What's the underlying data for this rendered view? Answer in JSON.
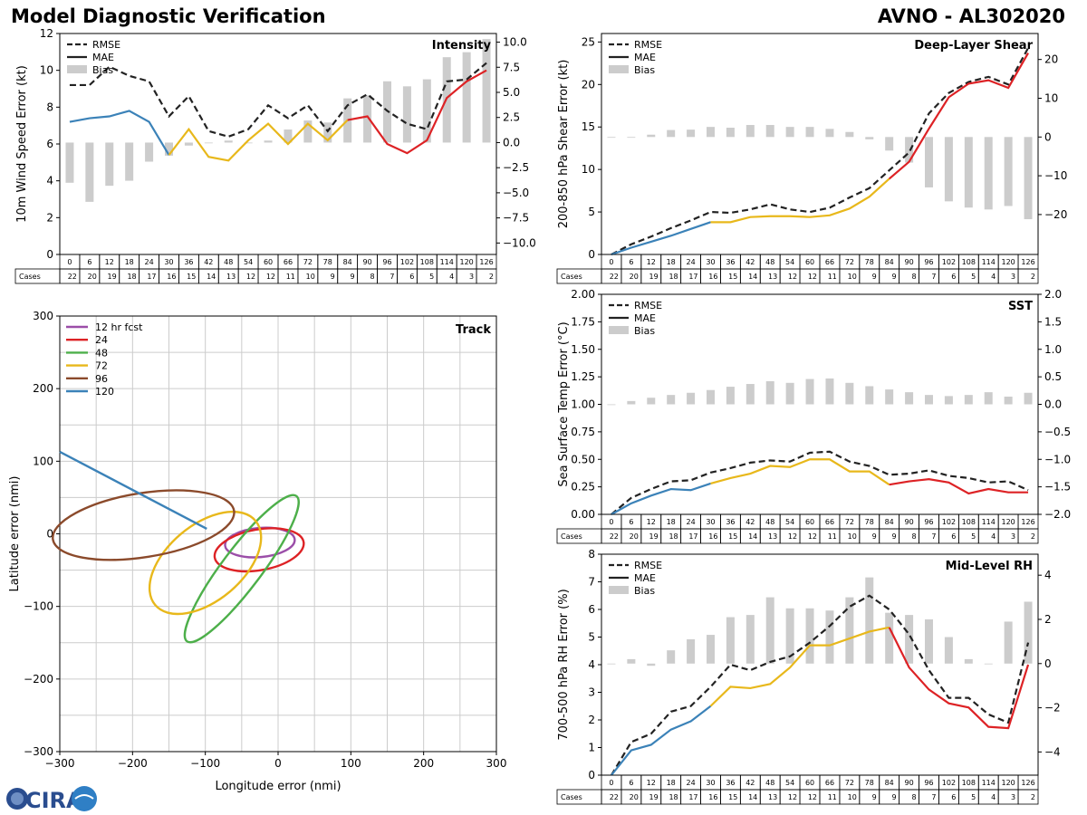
{
  "header": {
    "left_title": "Model Diagnostic Verification",
    "right_title": "AVNO - AL302020"
  },
  "colors": {
    "rmse": "#222222",
    "mae_early": "#3b82b8",
    "mae_mid": "#e8b81b",
    "mae_late": "#dd2225",
    "bias": "#cccccc",
    "grid": "#cccccc",
    "t12": "#9b4ea8",
    "t24": "#dd2225",
    "t48": "#4daf4a",
    "t72": "#e8b81b",
    "t96": "#8b4a2b",
    "t120": "#3b82b8"
  },
  "lead_hours": [
    0,
    6,
    12,
    18,
    24,
    30,
    36,
    42,
    48,
    54,
    60,
    66,
    72,
    78,
    84,
    90,
    96,
    102,
    108,
    114,
    120,
    126
  ],
  "cases": [
    22,
    20,
    19,
    18,
    17,
    16,
    15,
    14,
    13,
    12,
    12,
    11,
    10,
    9,
    9,
    8,
    7,
    6,
    5,
    4,
    3,
    2
  ],
  "cases_label": "Cases",
  "legend_labels": {
    "rmse": "RMSE",
    "mae": "MAE",
    "bias": "Bias"
  },
  "logo_text": "CIRA",
  "chart_data": [
    {
      "id": "intensity",
      "type": "line",
      "title": "Intensity",
      "ylabel": "10m Wind Speed Error (kt)",
      "ylim": [
        0,
        12
      ],
      "y2lim": [
        -11.14,
        10.86
      ],
      "yticks": [
        0,
        2,
        4,
        6,
        8,
        10,
        12
      ],
      "y2ticks": [
        -10.0,
        -7.5,
        -5.0,
        -2.5,
        0.0,
        2.5,
        5.0,
        7.5,
        10.0
      ],
      "rmse": [
        9.2,
        9.2,
        10.2,
        9.7,
        9.4,
        7.5,
        8.6,
        6.7,
        6.4,
        6.8,
        8.1,
        7.4,
        8.1,
        6.7,
        8.1,
        8.7,
        7.8,
        7.1,
        6.8,
        9.4,
        9.5,
        10.4
      ],
      "mae": [
        7.2,
        7.4,
        7.5,
        7.8,
        7.2,
        5.4,
        6.8,
        5.3,
        5.1,
        6.2,
        7.1,
        6.0,
        7.1,
        6.2,
        7.3,
        7.5,
        6.0,
        5.5,
        6.2,
        8.5,
        9.4,
        10.0
      ],
      "bias": [
        -4.0,
        -5.9,
        -4.3,
        -3.8,
        -1.9,
        -1.3,
        -0.3,
        0.0,
        0.2,
        0.0,
        0.2,
        1.3,
        2.2,
        2.0,
        4.4,
        4.7,
        6.1,
        5.6,
        6.3,
        8.5,
        9.0,
        10.3
      ]
    },
    {
      "id": "shear",
      "type": "line",
      "title": "Deep-Layer Shear",
      "ylabel": "200-850 hPa Shear Error (kt)",
      "ylim": [
        0,
        26
      ],
      "y2lim": [
        -30.3,
        26.7
      ],
      "yticks": [
        0,
        5,
        10,
        15,
        20,
        25
      ],
      "y2ticks": [
        -20,
        -10,
        0,
        10,
        20
      ],
      "rmse": [
        0.0,
        1.2,
        2.1,
        3.1,
        4.0,
        5.0,
        4.9,
        5.3,
        5.9,
        5.3,
        5.0,
        5.5,
        6.7,
        7.8,
        9.9,
        12.0,
        16.6,
        19.0,
        20.3,
        20.9,
        20.0,
        24.3
      ],
      "mae": [
        0.0,
        0.8,
        1.5,
        2.2,
        3.0,
        3.8,
        3.8,
        4.4,
        4.5,
        4.5,
        4.4,
        4.6,
        5.4,
        6.8,
        8.9,
        10.9,
        14.8,
        18.5,
        20.1,
        20.5,
        19.6,
        23.7
      ],
      "bias": [
        0.0,
        0.0,
        0.6,
        1.8,
        1.9,
        2.6,
        2.4,
        3.1,
        3.1,
        2.6,
        2.6,
        2.1,
        1.3,
        -0.6,
        -3.5,
        -6.6,
        -13.0,
        -16.6,
        -18.2,
        -18.7,
        -17.8,
        -21.2
      ]
    },
    {
      "id": "sst",
      "type": "line",
      "title": "SST",
      "ylabel": "Sea Surface Temp Error (°C)",
      "ylim": [
        0,
        2
      ],
      "y2lim": [
        -2,
        2
      ],
      "yticks": [
        0.0,
        0.25,
        0.5,
        0.75,
        1.0,
        1.25,
        1.5,
        1.75,
        2.0
      ],
      "y2ticks": [
        -2.0,
        -1.5,
        -1.0,
        -0.5,
        0.0,
        0.5,
        1.0,
        1.5,
        2.0
      ],
      "rmse": [
        0.0,
        0.15,
        0.23,
        0.3,
        0.31,
        0.38,
        0.42,
        0.47,
        0.49,
        0.48,
        0.56,
        0.57,
        0.48,
        0.44,
        0.36,
        0.37,
        0.4,
        0.35,
        0.33,
        0.29,
        0.3,
        0.22
      ],
      "mae": [
        0.0,
        0.1,
        0.17,
        0.23,
        0.22,
        0.28,
        0.33,
        0.37,
        0.44,
        0.43,
        0.5,
        0.5,
        0.39,
        0.39,
        0.27,
        0.3,
        0.32,
        0.29,
        0.19,
        0.23,
        0.2,
        0.2
      ],
      "bias": [
        0.0,
        0.06,
        0.12,
        0.17,
        0.21,
        0.26,
        0.32,
        0.37,
        0.42,
        0.39,
        0.46,
        0.47,
        0.39,
        0.33,
        0.27,
        0.22,
        0.17,
        0.15,
        0.17,
        0.22,
        0.14,
        0.21
      ]
    },
    {
      "id": "rh",
      "type": "line",
      "title": "Mid-Level RH",
      "ylabel": "700-500 hPa RH Error (%)",
      "ylim": [
        0,
        8
      ],
      "y2lim": [
        -5.05,
        4.95
      ],
      "yticks": [
        0,
        1,
        2,
        3,
        4,
        5,
        6,
        7,
        8
      ],
      "y2ticks": [
        -4,
        -2,
        0,
        2,
        4
      ],
      "rmse": [
        0.0,
        1.2,
        1.5,
        2.3,
        2.5,
        3.2,
        4.0,
        3.8,
        4.1,
        4.3,
        4.8,
        5.4,
        6.1,
        6.5,
        6.0,
        5.1,
        3.8,
        2.8,
        2.8,
        2.2,
        1.9,
        4.8
      ],
      "mae": [
        0.0,
        0.9,
        1.1,
        1.65,
        1.95,
        2.5,
        3.2,
        3.15,
        3.3,
        3.9,
        4.7,
        4.7,
        4.95,
        5.2,
        5.35,
        3.9,
        3.1,
        2.6,
        2.45,
        1.75,
        1.7,
        4.0
      ],
      "bias": [
        0.0,
        0.2,
        -0.1,
        0.6,
        1.1,
        1.3,
        2.1,
        2.2,
        3.0,
        2.5,
        2.5,
        2.4,
        3.0,
        3.9,
        2.3,
        2.2,
        2.0,
        1.2,
        0.2,
        0.0,
        1.9,
        2.8
      ]
    },
    {
      "id": "track",
      "type": "ellipse",
      "title": "Track",
      "xlabel": "Longitude error (nmi)",
      "ylabel": "Latitude error (nmi)",
      "xlim": [
        -300,
        300
      ],
      "ylim": [
        -300,
        300
      ],
      "ticks": [
        -300,
        -200,
        -100,
        0,
        100,
        200,
        300
      ],
      "legend": [
        "12 hr fcst",
        "24",
        "48",
        "72",
        "96",
        "120"
      ],
      "ellipses": [
        {
          "key": "t12",
          "cx": -25,
          "cy": -12,
          "rx": 48,
          "ry": 20,
          "rot": 5
        },
        {
          "key": "t24",
          "cx": -26,
          "cy": -22,
          "rx": 62,
          "ry": 28,
          "rot": 10
        },
        {
          "key": "t48",
          "cx": -50,
          "cy": -48,
          "rx": 125,
          "ry": 27,
          "rot": 53
        },
        {
          "key": "t72",
          "cx": -100,
          "cy": -40,
          "rx": 90,
          "ry": 52,
          "rot": 40
        },
        {
          "key": "t96",
          "cx": -185,
          "cy": 12,
          "rx": 126,
          "ry": 44,
          "rot": 9
        }
      ],
      "segment_120": [
        [
          -300,
          113
        ],
        [
          -98,
          7
        ]
      ]
    }
  ]
}
